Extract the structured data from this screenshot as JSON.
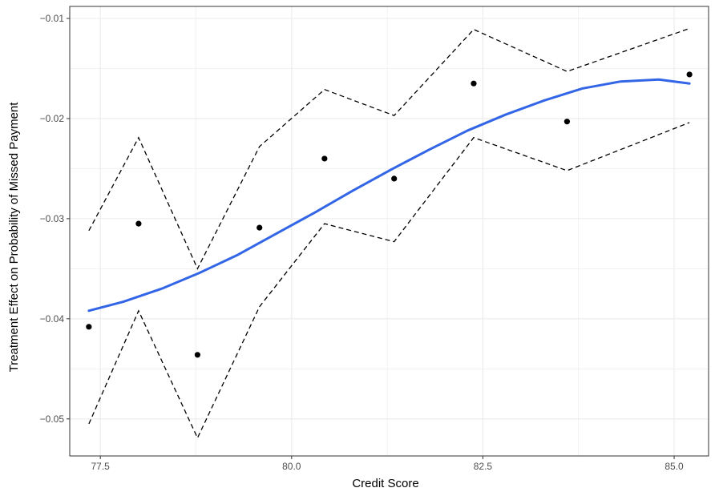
{
  "chart_data": {
    "type": "scatter",
    "xlabel": "Credit Score",
    "ylabel": "Treatment Effect on Probability of Missed Payment",
    "xlim": [
      77.1,
      85.45
    ],
    "ylim": [
      -0.0537,
      -0.0088
    ],
    "x_ticks": [
      77.5,
      80.0,
      82.5,
      85.0
    ],
    "x_tick_labels": [
      "77.5",
      "80.0",
      "82.5",
      "85.0"
    ],
    "y_ticks": [
      -0.05,
      -0.04,
      -0.03,
      -0.02,
      -0.01
    ],
    "y_tick_labels": [
      "−0.05",
      "−0.04",
      "−0.03",
      "−0.02",
      "−0.01"
    ],
    "grid": true,
    "colors": {
      "points": "#000000",
      "smooth": "#3366e6",
      "bands": "#000000",
      "grid": "#ebebeb",
      "panel_border": "#333333"
    },
    "series": [
      {
        "kind": "points",
        "x": [
          77.35,
          78.0,
          78.77,
          79.58,
          80.43,
          81.34,
          82.38,
          83.6,
          85.2
        ],
        "y": [
          -0.0408,
          -0.0305,
          -0.0436,
          -0.0309,
          -0.024,
          -0.026,
          -0.0165,
          -0.0203,
          -0.0156
        ]
      },
      {
        "kind": "upper-band",
        "x": [
          77.35,
          78.0,
          78.77,
          79.58,
          80.43,
          81.34,
          82.38,
          83.6,
          85.2
        ],
        "y": [
          -0.0312,
          -0.0219,
          -0.035,
          -0.0228,
          -0.0171,
          -0.0197,
          -0.0111,
          -0.0153,
          -0.011
        ]
      },
      {
        "kind": "lower-band",
        "x": [
          77.35,
          78.0,
          78.77,
          79.58,
          80.43,
          81.34,
          82.38,
          83.6,
          85.2
        ],
        "y": [
          -0.0505,
          -0.0392,
          -0.0519,
          -0.0388,
          -0.0305,
          -0.0323,
          -0.0219,
          -0.0252,
          -0.0204
        ]
      },
      {
        "kind": "smooth",
        "x": [
          77.35,
          77.8,
          78.3,
          78.8,
          79.3,
          79.8,
          80.3,
          80.8,
          81.3,
          81.8,
          82.3,
          82.8,
          83.3,
          83.8,
          84.3,
          84.8,
          85.2
        ],
        "y": [
          -0.0392,
          -0.0383,
          -0.037,
          -0.0354,
          -0.0336,
          -0.0315,
          -0.0294,
          -0.0272,
          -0.0251,
          -0.0231,
          -0.0212,
          -0.0196,
          -0.0182,
          -0.017,
          -0.0163,
          -0.0161,
          -0.0165
        ]
      }
    ]
  }
}
